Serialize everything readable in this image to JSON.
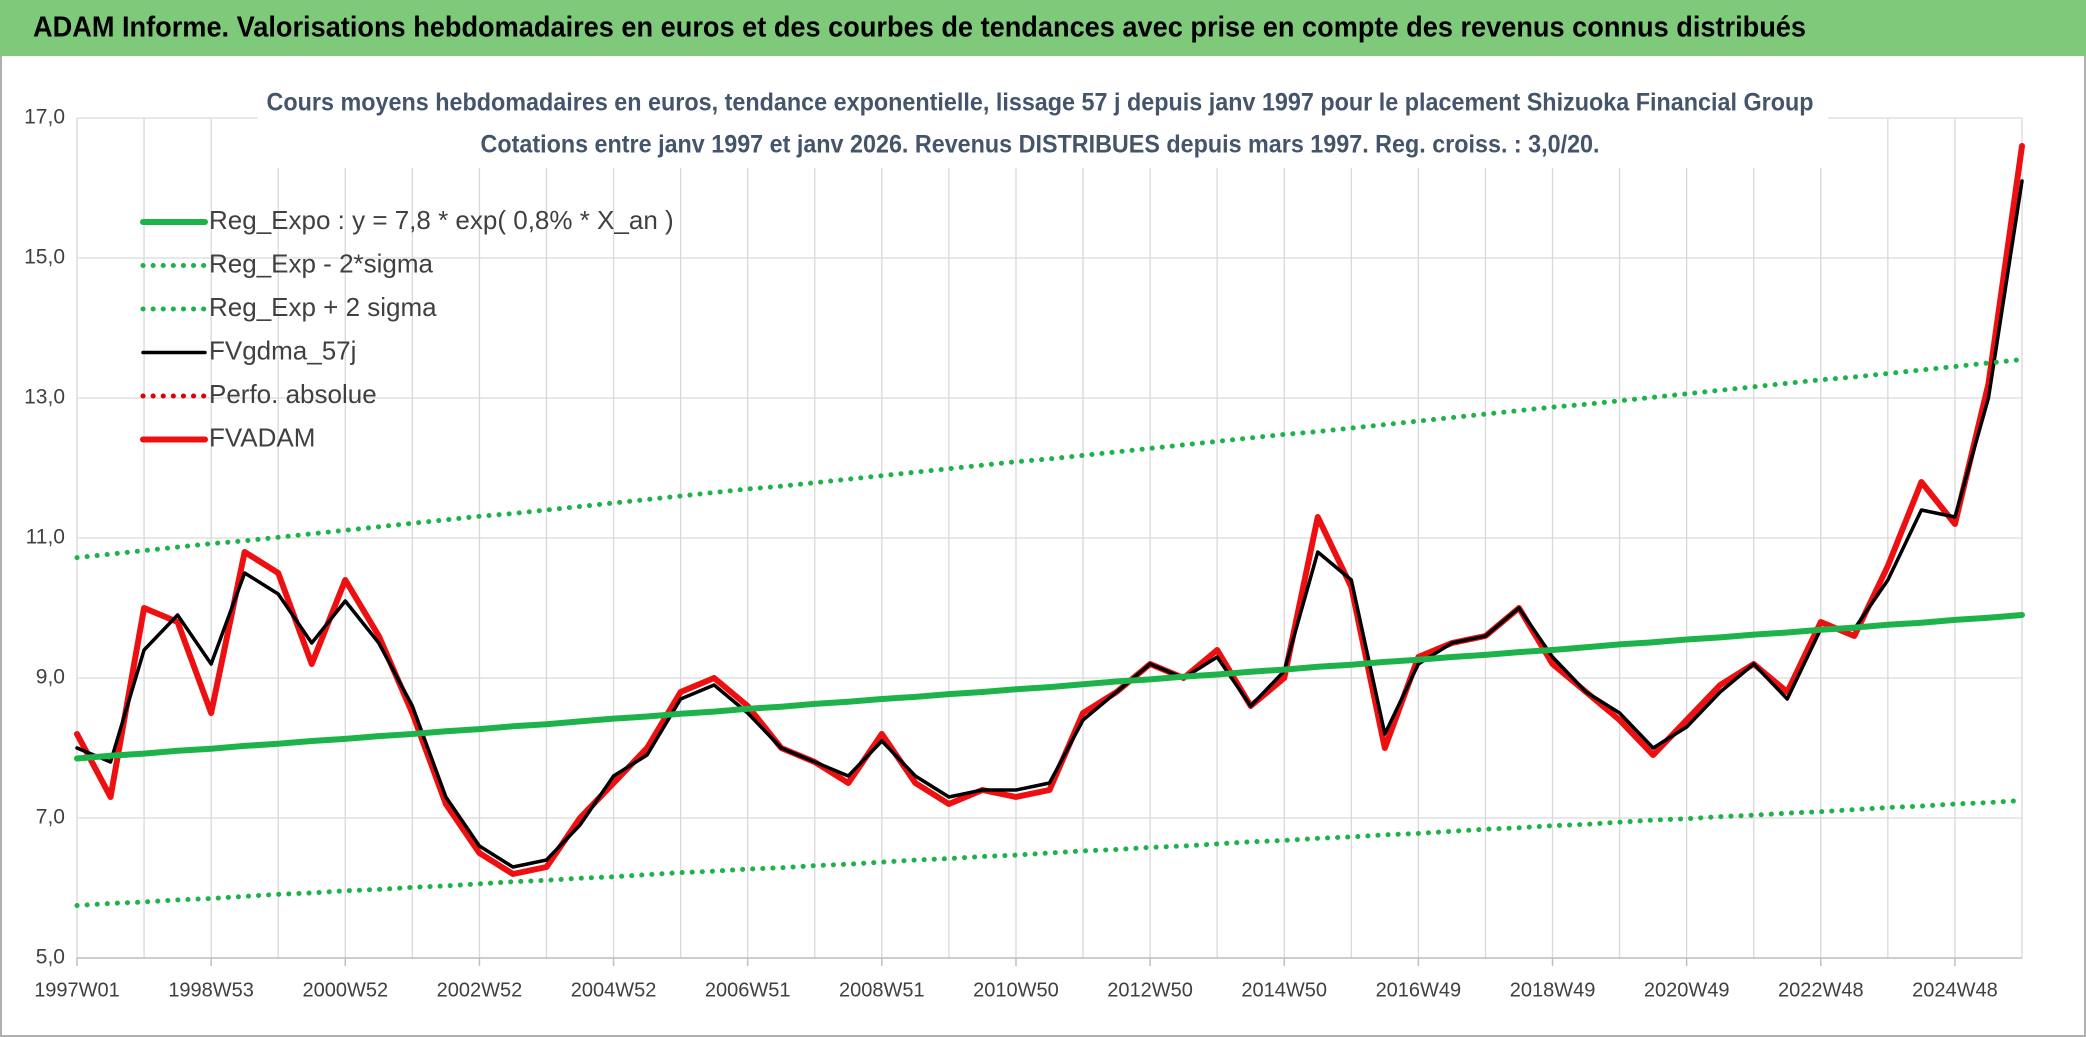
{
  "header": {
    "title": "ADAM Informe. Valorisations hebdomadaires en euros et des courbes de tendances avec prise en compte des revenus connus distribués"
  },
  "chart_data": {
    "type": "line",
    "title": "Cours moyens hebdomadaires en euros, tendance exponentielle, lissage 57 j depuis janv 1997 pour le placement Shizuoka Financial Group",
    "subtitle": "Cotations entre janv 1997 et janv 2026. Revenus DISTRIBUES depuis mars 1997. Reg. croiss. : 3,0/20.",
    "categories": [
      "1997W01",
      null,
      null,
      null,
      "1998W53",
      null,
      null,
      null,
      "2000W52",
      null,
      null,
      null,
      "2002W52",
      null,
      null,
      null,
      "2004W52",
      null,
      null,
      null,
      "2006W51",
      null,
      null,
      null,
      "2008W51",
      null,
      null,
      null,
      "2010W50",
      null,
      null,
      null,
      "2012W50",
      null,
      null,
      null,
      "2014W50",
      null,
      null,
      null,
      "2016W49",
      null,
      null,
      null,
      "2018W49",
      null,
      null,
      null,
      "2020W49",
      null,
      null,
      null,
      "2022W48",
      null,
      null,
      null,
      "2024W48",
      null,
      null
    ],
    "ylim": [
      5,
      17
    ],
    "yticks": [
      {
        "value": 5,
        "label": "5,0"
      },
      {
        "value": 7,
        "label": "7,0"
      },
      {
        "value": 9,
        "label": "9,0"
      },
      {
        "value": 11,
        "label": "11,0"
      },
      {
        "value": 13,
        "label": "13,0"
      },
      {
        "value": 15,
        "label": "15,0"
      },
      {
        "value": 17,
        "label": "17,0"
      }
    ],
    "grid": true,
    "legend": "top-left",
    "series": [
      {
        "name": "Reg_Expo : y = 7,8 * exp( 0,8% *  X_an )",
        "color": "#1db34a",
        "dash": "solid",
        "values": [
          7.85,
          7.89,
          7.92,
          7.96,
          7.99,
          8.03,
          8.06,
          8.1,
          8.13,
          8.17,
          8.2,
          8.24,
          8.27,
          8.31,
          8.34,
          8.38,
          8.42,
          8.45,
          8.49,
          8.52,
          8.56,
          8.59,
          8.63,
          8.66,
          8.7,
          8.73,
          8.77,
          8.8,
          8.84,
          8.87,
          8.91,
          8.95,
          8.98,
          9.02,
          9.05,
          9.09,
          9.12,
          9.16,
          9.19,
          9.23,
          9.26,
          9.3,
          9.33,
          9.37,
          9.4,
          9.44,
          9.48,
          9.51,
          9.55,
          9.58,
          9.62,
          9.65,
          9.69,
          9.72,
          9.76,
          9.79,
          9.83,
          9.86,
          9.9
        ]
      },
      {
        "name": "Reg_Exp - 2*sigma",
        "color": "#1db34a",
        "dash": "dotted",
        "values": [
          5.75,
          5.78,
          5.8,
          5.83,
          5.85,
          5.88,
          5.91,
          5.93,
          5.96,
          5.98,
          6.01,
          6.03,
          6.06,
          6.09,
          6.11,
          6.14,
          6.16,
          6.19,
          6.22,
          6.24,
          6.27,
          6.29,
          6.32,
          6.34,
          6.37,
          6.4,
          6.42,
          6.45,
          6.47,
          6.5,
          6.53,
          6.55,
          6.58,
          6.6,
          6.63,
          6.66,
          6.68,
          6.71,
          6.73,
          6.76,
          6.78,
          6.81,
          6.84,
          6.86,
          6.89,
          6.91,
          6.94,
          6.97,
          6.99,
          7.02,
          7.04,
          7.07,
          7.09,
          7.12,
          7.15,
          7.17,
          7.2,
          7.22,
          7.25
        ]
      },
      {
        "name": "Reg_Exp + 2 sigma",
        "color": "#1db34a",
        "dash": "dotted",
        "values": [
          10.72,
          10.77,
          10.82,
          10.87,
          10.92,
          10.96,
          11.01,
          11.06,
          11.11,
          11.16,
          11.21,
          11.26,
          11.31,
          11.35,
          11.4,
          11.45,
          11.5,
          11.55,
          11.6,
          11.65,
          11.7,
          11.74,
          11.79,
          11.84,
          11.89,
          11.94,
          11.99,
          12.04,
          12.09,
          12.13,
          12.18,
          12.23,
          12.28,
          12.33,
          12.38,
          12.43,
          12.48,
          12.52,
          12.57,
          12.62,
          12.67,
          12.72,
          12.77,
          12.82,
          12.87,
          12.91,
          12.96,
          13.01,
          13.06,
          13.11,
          13.16,
          13.21,
          13.26,
          13.3,
          13.35,
          13.4,
          13.45,
          13.5,
          13.55
        ]
      },
      {
        "name": "FVgdma_57j",
        "color": "#000000",
        "dash": "solid",
        "values": [
          8.0,
          7.8,
          9.4,
          9.9,
          9.2,
          10.5,
          10.2,
          9.5,
          10.1,
          9.5,
          8.6,
          7.3,
          6.6,
          6.3,
          6.4,
          6.9,
          7.6,
          7.9,
          8.7,
          8.9,
          8.5,
          8.0,
          7.8,
          7.6,
          8.1,
          7.6,
          7.3,
          7.4,
          7.4,
          7.5,
          8.4,
          8.8,
          9.2,
          9.0,
          9.3,
          8.6,
          9.1,
          10.8,
          10.4,
          8.2,
          9.2,
          9.5,
          9.6,
          10.0,
          9.3,
          8.8,
          8.5,
          8.0,
          8.3,
          8.8,
          9.2,
          8.7,
          9.7,
          9.7,
          10.4,
          11.4,
          11.3,
          13.0,
          16.1
        ]
      },
      {
        "name": "Perfo. absolue",
        "color": "#e00000",
        "dash": "dotted"
      },
      {
        "name": "FVADAM",
        "color": "#ee1010",
        "dash": "solid",
        "values": [
          8.2,
          7.3,
          10.0,
          9.8,
          8.5,
          10.8,
          10.5,
          9.2,
          10.4,
          9.6,
          8.5,
          7.2,
          6.5,
          6.2,
          6.3,
          7.0,
          7.5,
          8.0,
          8.8,
          9.0,
          8.6,
          8.0,
          7.8,
          7.5,
          8.2,
          7.5,
          7.2,
          7.4,
          7.3,
          7.4,
          8.5,
          8.8,
          9.2,
          9.0,
          9.4,
          8.6,
          9.0,
          11.3,
          10.3,
          8.0,
          9.3,
          9.5,
          9.6,
          10.0,
          9.2,
          8.8,
          8.4,
          7.9,
          8.4,
          8.9,
          9.2,
          8.8,
          9.8,
          9.6,
          10.6,
          11.8,
          11.2,
          13.2,
          16.6
        ]
      }
    ]
  }
}
